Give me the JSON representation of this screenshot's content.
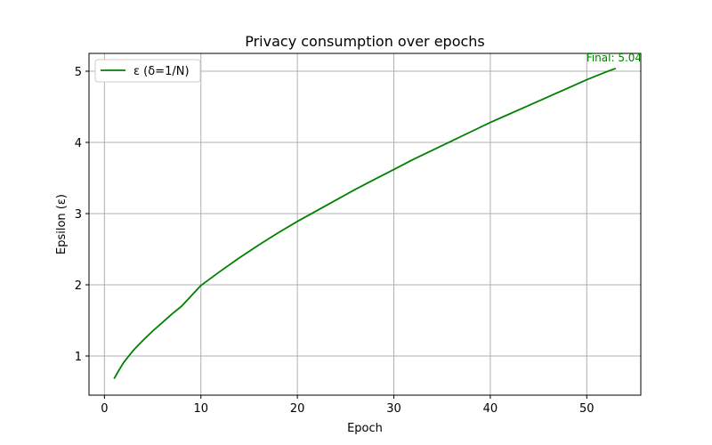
{
  "chart_data": {
    "type": "line",
    "title": "Privacy consumption over epochs",
    "xlabel": "Epoch",
    "ylabel": "Epsilon (ε)",
    "xlim": [
      -1.6,
      55.6
    ],
    "ylim": [
      0.45,
      5.25
    ],
    "xticks": [
      0,
      10,
      20,
      30,
      40,
      50
    ],
    "yticks": [
      1,
      2,
      3,
      4,
      5
    ],
    "grid": true,
    "legend_position": "top-left",
    "series": [
      {
        "name": "ε (δ=1/N)",
        "color": "#008000",
        "x": [
          1,
          1.5,
          2,
          3,
          4,
          5,
          6,
          7,
          8,
          10,
          12,
          14,
          16,
          18,
          20,
          22,
          24,
          26,
          28,
          30,
          32,
          34,
          36,
          38,
          40,
          42,
          44,
          46,
          48,
          50,
          52,
          53
        ],
        "y": [
          0.68,
          0.8,
          0.91,
          1.08,
          1.22,
          1.35,
          1.47,
          1.59,
          1.7,
          1.99,
          2.19,
          2.38,
          2.56,
          2.73,
          2.89,
          3.04,
          3.19,
          3.34,
          3.48,
          3.62,
          3.76,
          3.89,
          4.02,
          4.15,
          4.28,
          4.4,
          4.52,
          4.64,
          4.76,
          4.88,
          4.99,
          5.04
        ]
      }
    ],
    "annotations": [
      {
        "text": "Final: 5.04",
        "x": 53,
        "y": 5.04,
        "color": "#008000"
      }
    ]
  }
}
